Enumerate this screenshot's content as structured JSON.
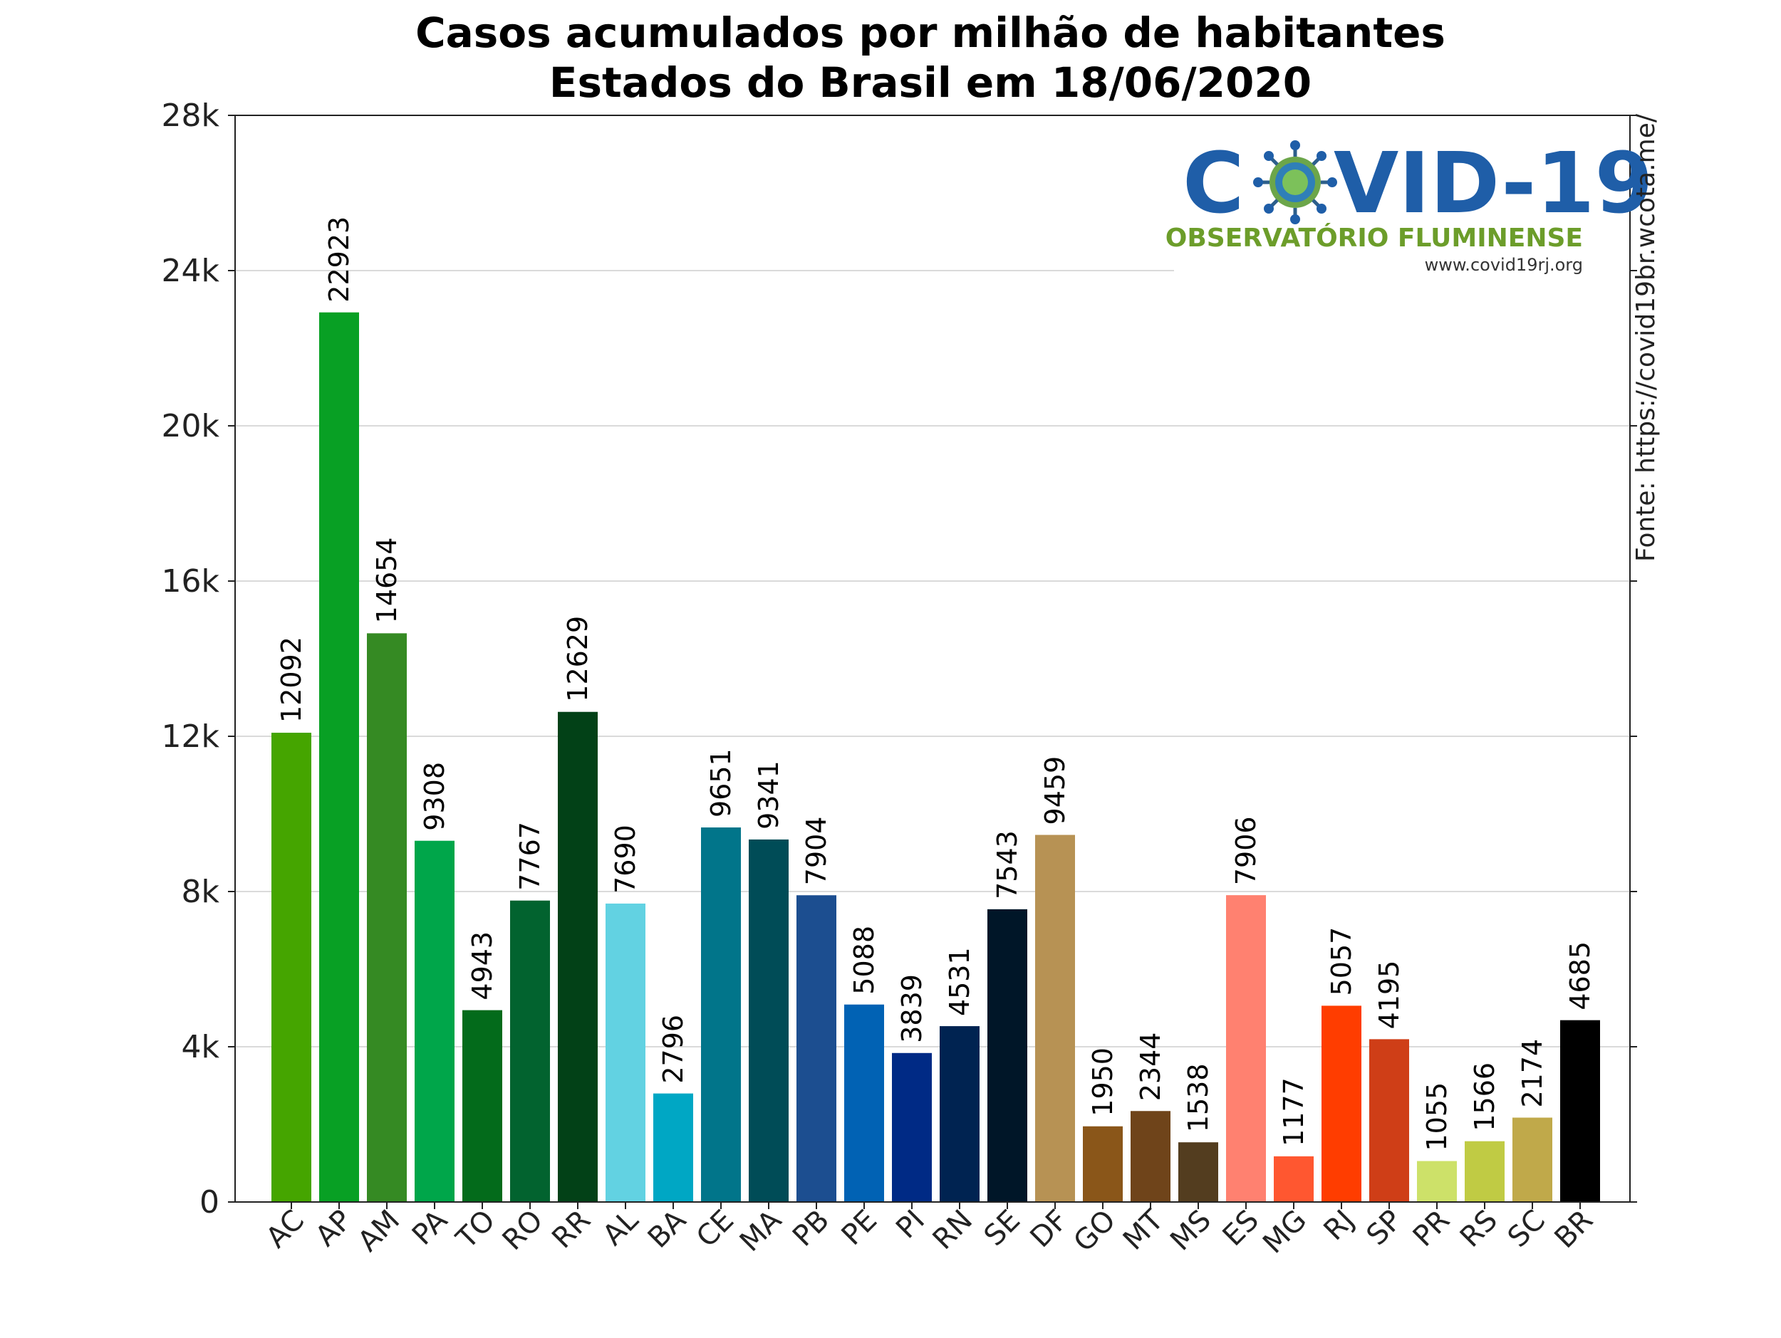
{
  "chart_data": {
    "type": "bar",
    "title": "Casos acumulados por milhão de habitantes",
    "subtitle": "Estados do Brasil em 18/06/2020",
    "xlabel": "",
    "ylabel": "",
    "ylim": [
      0,
      28000
    ],
    "y_ticks": [
      0,
      4000,
      8000,
      12000,
      16000,
      20000,
      24000,
      28000
    ],
    "y_tick_labels": [
      "0",
      "4k",
      "8k",
      "12k",
      "16k",
      "20k",
      "24k",
      "28k"
    ],
    "grid": true,
    "categories": [
      "AC",
      "AP",
      "AM",
      "PA",
      "TO",
      "RO",
      "RR",
      "AL",
      "BA",
      "CE",
      "MA",
      "PB",
      "PE",
      "PI",
      "RN",
      "SE",
      "DF",
      "GO",
      "MT",
      "MS",
      "ES",
      "MG",
      "RJ",
      "SP",
      "PR",
      "RS",
      "SC",
      "BR"
    ],
    "values": [
      12092,
      22923,
      14654,
      9308,
      4943,
      7767,
      12629,
      7690,
      2796,
      9651,
      9341,
      7904,
      5088,
      3839,
      4531,
      7543,
      9459,
      1950,
      2344,
      1538,
      7906,
      1177,
      5057,
      4195,
      1055,
      1566,
      2174,
      4685
    ],
    "colors": [
      "#45a500",
      "#08a024",
      "#358a23",
      "#00a64a",
      "#036b1b",
      "#02632f",
      "#024117",
      "#62d2e2",
      "#00a7c4",
      "#01758a",
      "#004c57",
      "#1c4e90",
      "#0162b4",
      "#002a85",
      "#002351",
      "#001628",
      "#b79254",
      "#8a5619",
      "#6f441a",
      "#533d1f",
      "#ff8170",
      "#ff5730",
      "#ff3d00",
      "#cf3e17",
      "#cde169",
      "#c0cb44",
      "#c0a94a",
      "#000000"
    ]
  },
  "source_note": "Fonte: https://covid19br.wcota.me/",
  "logo": {
    "title": "COVID-19",
    "subtitle": "OBSERVATÓRIO FLUMINENSE",
    "url": "www.covid19rj.org",
    "title_color": "#1f5ea8",
    "subtitle_color": "#6c9d2a",
    "virus_icon": "coronavirus-icon"
  }
}
